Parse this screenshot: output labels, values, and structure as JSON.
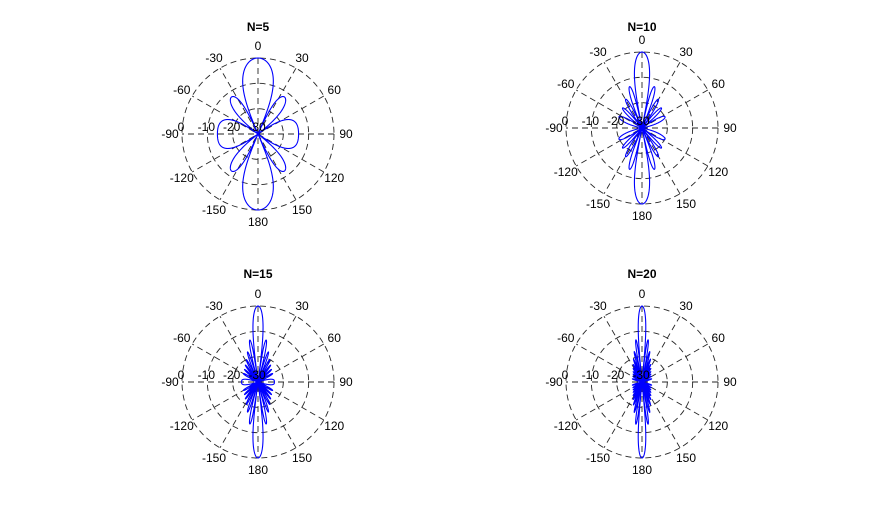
{
  "chart_data": [
    {
      "type": "polar",
      "title": "N=5",
      "N": 5,
      "rlim": [
        -30,
        0
      ],
      "rticks": [
        "0",
        "-10",
        "-20",
        "-30"
      ],
      "theta_ticks": [
        "0",
        "30",
        "60",
        "90",
        "120",
        "150",
        "180",
        "-150",
        "-120",
        "-90",
        "-60",
        "-30"
      ],
      "theta_zero": "top",
      "theta_direction": "clockwise",
      "grid": true,
      "series_color": "#0000ff",
      "angle_range_deg": [
        -180,
        180
      ]
    },
    {
      "type": "polar",
      "title": "N=10",
      "N": 10,
      "rlim": [
        -30,
        0
      ],
      "rticks": [
        "0",
        "-10",
        "-20",
        "-30"
      ],
      "theta_ticks": [
        "0",
        "30",
        "60",
        "90",
        "120",
        "150",
        "180",
        "-150",
        "-120",
        "-90",
        "-60",
        "-30"
      ],
      "theta_zero": "top",
      "theta_direction": "clockwise",
      "grid": true,
      "series_color": "#0000ff",
      "angle_range_deg": [
        -180,
        180
      ]
    },
    {
      "type": "polar",
      "title": "N=15",
      "N": 15,
      "rlim": [
        -30,
        0
      ],
      "rticks": [
        "0",
        "-10",
        "-20",
        "-30"
      ],
      "theta_ticks": [
        "0",
        "30",
        "60",
        "90",
        "120",
        "150",
        "180",
        "-150",
        "-120",
        "-90",
        "-60",
        "-30"
      ],
      "theta_zero": "top",
      "theta_direction": "clockwise",
      "grid": true,
      "series_color": "#0000ff",
      "angle_range_deg": [
        -180,
        180
      ]
    },
    {
      "type": "polar",
      "title": "N=20",
      "N": 20,
      "rlim": [
        -30,
        0
      ],
      "rticks": [
        "0",
        "-10",
        "-20",
        "-30"
      ],
      "theta_ticks": [
        "0",
        "30",
        "60",
        "90",
        "120",
        "150",
        "180",
        "-150",
        "-120",
        "-90",
        "-60",
        "-30"
      ],
      "theta_zero": "top",
      "theta_direction": "clockwise",
      "grid": true,
      "series_color": "#0000ff",
      "angle_range_deg": [
        -180,
        180
      ]
    }
  ]
}
